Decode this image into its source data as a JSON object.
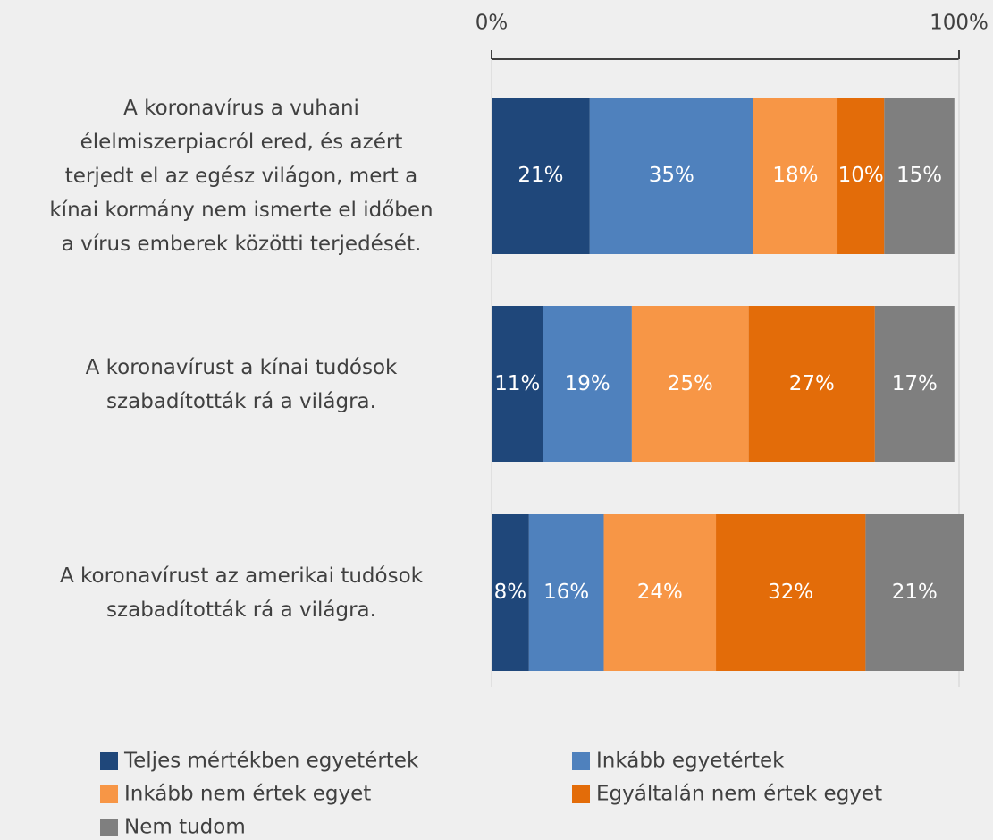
{
  "chart_data": {
    "type": "bar",
    "orientation": "horizontal",
    "stacked": true,
    "categories": [
      "A koronavírus a vuhani\nélelmiszerpiacról ered, és azért\nterjedt el az egész világon, mert a\nkínai kormány nem ismerte el időben\na vírus emberek közötti terjedését.",
      "A koronavírust a kínai tudósok\nszabadították rá a világra.",
      "A koronavírust az amerikai tudósok\nszabadították rá a világra."
    ],
    "series": [
      {
        "name": "Teljes mértékben egyetértek",
        "color": "#1f477a",
        "values": [
          21,
          11,
          8
        ],
        "value_labels": [
          "21%",
          "11%",
          "8%"
        ]
      },
      {
        "name": "Inkább egyetértek",
        "color": "#4f81bd",
        "values": [
          35,
          19,
          16
        ],
        "value_labels": [
          "35%",
          "19%",
          "16%"
        ]
      },
      {
        "name": "Inkább nem értek egyet",
        "color": "#f79646",
        "values": [
          18,
          25,
          24
        ],
        "value_labels": [
          "18%",
          "25%",
          "24%"
        ]
      },
      {
        "name": "Egyáltalán nem értek egyet",
        "color": "#e36c09",
        "values": [
          10,
          27,
          32
        ],
        "value_labels": [
          "10%",
          "27%",
          "32%"
        ]
      },
      {
        "name": "Nem tudom",
        "color": "#7f7f7f",
        "values": [
          15,
          17,
          21
        ],
        "value_labels": [
          "15%",
          "17%",
          "21%"
        ]
      }
    ],
    "xlim": [
      0,
      100
    ],
    "xticks": [
      {
        "value": 0,
        "label": "0%"
      },
      {
        "value": 100,
        "label": "100%"
      }
    ],
    "legend": "bottom"
  }
}
